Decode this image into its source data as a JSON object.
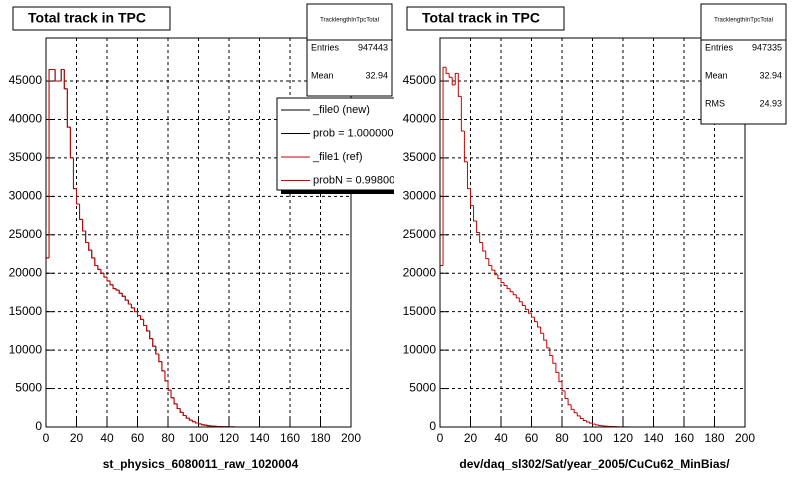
{
  "chart_data": [
    {
      "type": "histogram",
      "title": "Total track in TPC",
      "xlabel": "st_physics_6080011_raw_1020004",
      "bins": [
        0,
        2,
        4,
        6,
        8,
        10,
        12,
        14,
        16,
        18,
        20,
        22,
        24,
        26,
        28,
        30,
        32,
        34,
        36,
        38,
        40,
        42,
        44,
        46,
        48,
        50,
        52,
        54,
        56,
        58,
        60,
        62,
        64,
        66,
        68,
        70,
        72,
        74,
        76,
        78,
        80,
        82,
        84,
        86,
        88,
        90,
        92,
        94,
        96,
        98,
        100,
        102,
        104,
        106,
        108,
        110,
        112,
        114,
        116,
        118,
        120,
        122,
        124,
        126,
        128,
        130,
        132,
        134,
        136,
        138,
        140,
        142,
        144,
        146,
        148,
        150,
        152,
        154,
        156,
        158,
        160,
        162,
        164,
        166,
        168,
        170,
        172,
        174,
        176,
        178,
        180,
        182,
        184,
        186,
        188,
        190,
        192,
        194,
        196,
        198,
        200
      ],
      "series": [
        {
          "name": "_file0 (new)",
          "color": "#000000",
          "values": [
            22000,
            46500,
            46500,
            45000,
            45000,
            46500,
            44000,
            39000,
            35000,
            31000,
            29000,
            27000,
            25500,
            24000,
            23000,
            22000,
            21000,
            20500,
            20000,
            19500,
            19000,
            18500,
            18000,
            17800,
            17400,
            17000,
            16500,
            16000,
            15500,
            15000,
            14500,
            14000,
            13200,
            12500,
            11500,
            10500,
            9500,
            8500,
            7300,
            6000,
            4800,
            3800,
            3000,
            2400,
            1900,
            1500,
            1150,
            900,
            700,
            520,
            400,
            300,
            220,
            160,
            120,
            90,
            70,
            50,
            35,
            25,
            18,
            12,
            8,
            5,
            3,
            0,
            0,
            0,
            0,
            0,
            0,
            0,
            0,
            0,
            0,
            0,
            0,
            0,
            0,
            0,
            0,
            0,
            0,
            0,
            0,
            0,
            0,
            0,
            0,
            0,
            0,
            0,
            0,
            0,
            0,
            0,
            0,
            0,
            0,
            0
          ]
        },
        {
          "name": "_file1 (ref)",
          "color": "#cc0000",
          "values": [
            22000,
            46500,
            46500,
            45000,
            45000,
            46500,
            44000,
            39000,
            35000,
            31000,
            29000,
            27000,
            25500,
            24000,
            23000,
            22000,
            21000,
            20500,
            20000,
            19500,
            19000,
            18500,
            18000,
            17800,
            17400,
            17000,
            16500,
            16000,
            15500,
            15000,
            14500,
            14000,
            13200,
            12500,
            11500,
            10500,
            9500,
            8500,
            7300,
            6000,
            4800,
            3800,
            3000,
            2400,
            1900,
            1500,
            1150,
            900,
            700,
            520,
            400,
            300,
            220,
            160,
            120,
            90,
            70,
            50,
            35,
            25,
            18,
            12,
            8,
            5,
            3,
            0,
            0,
            0,
            0,
            0,
            0,
            0,
            0,
            0,
            0,
            0,
            0,
            0,
            0,
            0,
            0,
            0,
            0,
            0,
            0,
            0,
            0,
            0,
            0,
            0,
            0,
            0,
            0,
            0,
            0,
            0,
            0,
            0,
            0,
            0
          ]
        }
      ],
      "legend_stats": [
        "prob = 1.000000",
        "probN = 0.99800"
      ],
      "xlim": [
        0,
        200
      ],
      "xticks": [
        0,
        20,
        40,
        60,
        80,
        100,
        120,
        140,
        160,
        180,
        200
      ],
      "ylim": [
        0,
        50600
      ],
      "yticks": [
        0,
        5000,
        10000,
        15000,
        20000,
        25000,
        30000,
        35000,
        40000,
        45000
      ],
      "grid": true,
      "stats": {
        "name": "TracklengthInTpcTotal",
        "rows": [
          {
            "label": "Entries",
            "value": 947443
          },
          {
            "label": "Mean",
            "value": 32.94
          }
        ]
      }
    },
    {
      "type": "histogram",
      "title": "Total track in TPC",
      "xlabel": "dev/daq_sl302/Sat/year_2005/CuCu62_MinBias/",
      "bins": [
        0,
        2,
        4,
        6,
        8,
        10,
        12,
        14,
        16,
        18,
        20,
        22,
        24,
        26,
        28,
        30,
        32,
        34,
        36,
        38,
        40,
        42,
        44,
        46,
        48,
        50,
        52,
        54,
        56,
        58,
        60,
        62,
        64,
        66,
        68,
        70,
        72,
        74,
        76,
        78,
        80,
        82,
        84,
        86,
        88,
        90,
        92,
        94,
        96,
        98,
        100,
        102,
        104,
        106,
        108,
        110,
        112,
        114,
        116,
        118,
        120,
        122,
        124,
        126,
        128,
        130,
        132,
        134,
        136,
        138,
        140,
        142,
        144,
        146,
        148,
        150,
        152,
        154,
        156,
        158,
        160,
        162,
        164,
        166,
        168,
        170,
        172,
        174,
        176,
        178,
        180,
        182,
        184,
        186,
        188,
        190,
        192,
        194,
        196,
        198,
        200
      ],
      "series": [
        {
          "color": "#cc0000",
          "values": [
            21000,
            46800,
            46000,
            45500,
            44500,
            46000,
            43000,
            38500,
            34500,
            31000,
            28800,
            26800,
            25300,
            24000,
            22900,
            21900,
            21000,
            20400,
            19800,
            19300,
            18800,
            18400,
            18000,
            17600,
            17200,
            16800,
            16300,
            15800,
            15300,
            14800,
            14300,
            13700,
            13000,
            12200,
            11300,
            10300,
            9300,
            8300,
            7100,
            5900,
            4700,
            3700,
            2900,
            2300,
            1850,
            1450,
            1100,
            850,
            650,
            500,
            380,
            280,
            200,
            150,
            110,
            80,
            60,
            45,
            30,
            20,
            15,
            10,
            6,
            4,
            2,
            0,
            0,
            0,
            0,
            0,
            0,
            0,
            0,
            0,
            0,
            0,
            0,
            0,
            0,
            0,
            0,
            0,
            0,
            0,
            0,
            0,
            0,
            0,
            0,
            0,
            0,
            0,
            0,
            0,
            0,
            0,
            0,
            0,
            0,
            0
          ]
        }
      ],
      "xlim": [
        0,
        200
      ],
      "xticks": [
        0,
        20,
        40,
        60,
        80,
        100,
        120,
        140,
        160,
        180,
        200
      ],
      "ylim": [
        0,
        50600
      ],
      "yticks": [
        0,
        5000,
        10000,
        15000,
        20000,
        25000,
        30000,
        35000,
        40000,
        45000
      ],
      "grid": true,
      "stats": {
        "name": "TracklengthInTpcTotal",
        "rows": [
          {
            "label": "Entries",
            "value": 947335
          },
          {
            "label": "Mean",
            "value": 32.94
          },
          {
            "label": "RMS",
            "value": 24.93
          }
        ]
      }
    }
  ]
}
